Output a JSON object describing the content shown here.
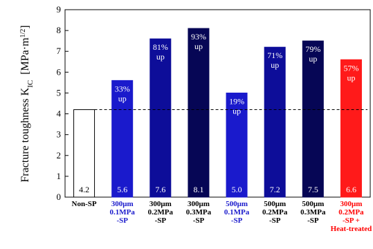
{
  "chart_data": {
    "type": "bar",
    "ylabel": "Fracture toughness K",
    "ylabel_sub": "IC",
    "ylabel_unit_open": "[MPa·m",
    "ylabel_unit_sup": "1/2",
    "ylabel_unit_close": "]",
    "ylim": [
      0,
      9
    ],
    "yticks": [
      "0",
      "1",
      "2",
      "3",
      "4",
      "5",
      "6",
      "7",
      "8",
      "9"
    ],
    "grid": false,
    "reference_line": {
      "value": 4.2,
      "style": "dashed"
    },
    "categories": [
      {
        "lines": [
          "Non-SP"
        ],
        "color": "#000000"
      },
      {
        "lines": [
          "300μm",
          "0.1MPa",
          "-SP"
        ],
        "color": "#1a1acc"
      },
      {
        "lines": [
          "300μm",
          "0.2MPa",
          "-SP"
        ],
        "color": "#000000"
      },
      {
        "lines": [
          "300μm",
          "0.3MPa",
          "-SP"
        ],
        "color": "#000000"
      },
      {
        "lines": [
          "500μm",
          "0.1MPa",
          "-SP"
        ],
        "color": "#1a1acc"
      },
      {
        "lines": [
          "500μm",
          "0.2MPa",
          "-SP"
        ],
        "color": "#000000"
      },
      {
        "lines": [
          "500μm",
          "0.3MPa",
          "-SP"
        ],
        "color": "#000000"
      },
      {
        "lines": [
          "300μm",
          "0.2MPa",
          "-SP +",
          "Heat-treated"
        ],
        "color": "#ff0000"
      }
    ],
    "values": [
      4.2,
      5.6,
      7.6,
      8.1,
      5.0,
      7.2,
      7.5,
      6.6
    ],
    "value_labels": [
      "4.2",
      "5.6",
      "7.6",
      "8.1",
      "5.0",
      "7.2",
      "7.5",
      "6.6"
    ],
    "annotations": [
      "",
      "33%|up",
      "81%|up",
      "93%|up",
      "19%|up",
      "71%|up",
      "79%|up",
      "57%|up"
    ],
    "bar_colors": [
      "#ffffff",
      "#1a1acc",
      "#0d0d99",
      "#060655",
      "#1a1acc",
      "#0d0d99",
      "#060655",
      "#ff1a1a"
    ]
  }
}
